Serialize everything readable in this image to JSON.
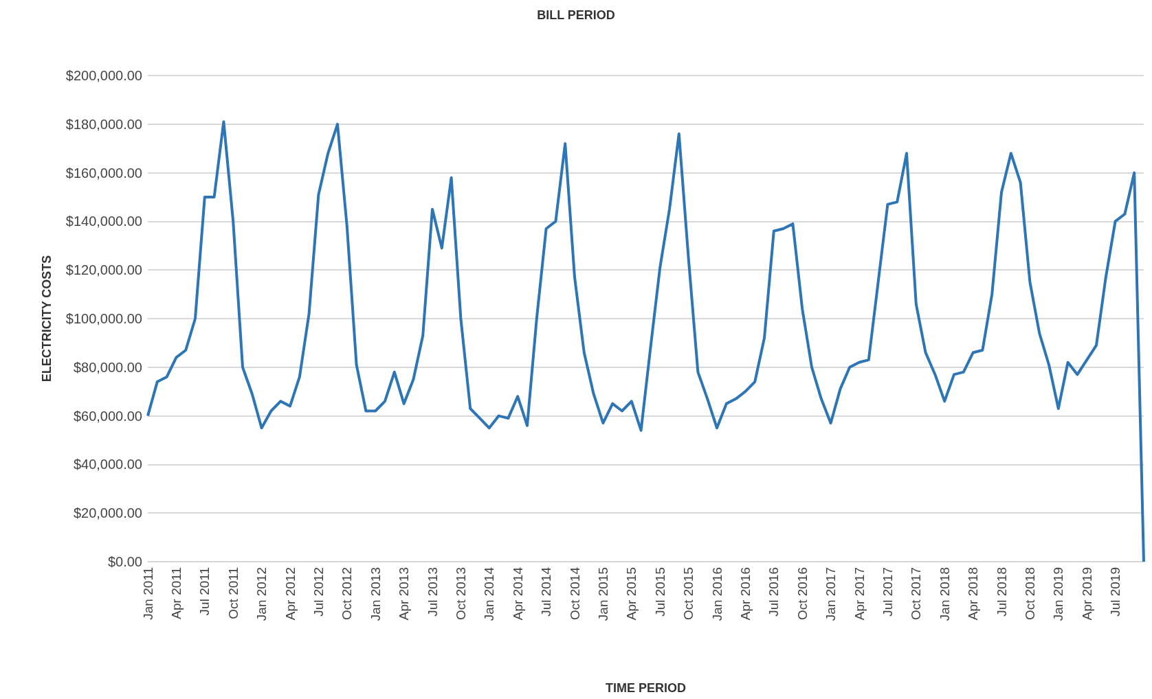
{
  "chart_data": {
    "type": "line",
    "title": "BILL PERIOD",
    "xlabel": "TIME PERIOD",
    "ylabel": "ELECTRICITY COSTS",
    "categories": [
      "Jan 2011",
      null,
      null,
      "Apr 2011",
      null,
      null,
      "Jul 2011",
      null,
      null,
      "Oct 2011",
      null,
      null,
      "Jan 2012",
      null,
      null,
      "Apr 2012",
      null,
      null,
      "Jul 2012",
      null,
      null,
      "Oct 2012",
      null,
      null,
      "Jan 2013",
      null,
      null,
      "Apr 2013",
      null,
      null,
      "Jul 2013",
      null,
      null,
      "Oct 2013",
      null,
      null,
      "Jan 2014",
      null,
      null,
      "Apr 2014",
      null,
      null,
      "Jul 2014",
      null,
      null,
      "Oct 2014",
      null,
      null,
      "Jan 2015",
      null,
      null,
      "Apr 2015",
      null,
      null,
      "Jul 2015",
      null,
      null,
      "Oct 2015",
      null,
      null,
      "Jan 2016",
      null,
      null,
      "Apr 2016",
      null,
      null,
      "Jul 2016",
      null,
      null,
      "Oct 2016",
      null,
      null,
      "Jan 2017",
      null,
      null,
      "Apr 2017",
      null,
      null,
      "Jul 2017",
      null,
      null,
      "Oct 2017",
      null,
      null,
      "Jan 2018",
      null,
      null,
      "Apr 2018",
      null,
      null,
      "Jul 2018",
      null,
      null,
      "Oct 2018",
      null,
      null,
      "Jan 2019",
      null,
      null,
      "Apr 2019",
      null,
      null,
      "Jul 2019",
      null,
      null,
      null
    ],
    "series": [
      {
        "color": "#2e75b6",
        "values": [
          60000,
          74000,
          76000,
          84000,
          87000,
          100000,
          150000,
          150000,
          181000,
          140000,
          80000,
          69000,
          55000,
          62000,
          66000,
          64000,
          76000,
          102000,
          151000,
          168000,
          180000,
          138000,
          81000,
          62000,
          62000,
          66000,
          78000,
          65000,
          75000,
          93000,
          145000,
          129000,
          158000,
          100000,
          63000,
          59000,
          55000,
          60000,
          59000,
          68000,
          56000,
          100000,
          137000,
          140000,
          172000,
          117000,
          86000,
          69000,
          57000,
          65000,
          62000,
          66000,
          54000,
          88000,
          121000,
          145000,
          176000,
          125000,
          78000,
          67000,
          55000,
          65000,
          67000,
          70000,
          74000,
          92000,
          136000,
          137000,
          139000,
          104000,
          80000,
          67000,
          57000,
          71000,
          80000,
          82000,
          83000,
          115000,
          147000,
          148000,
          168000,
          106000,
          86000,
          77000,
          66000,
          77000,
          78000,
          86000,
          87000,
          110000,
          152000,
          168000,
          156000,
          115000,
          94000,
          81000,
          63000,
          82000,
          77000,
          83000,
          89000,
          117000,
          140000,
          143000,
          160000,
          0
        ]
      }
    ],
    "ylim": [
      0,
      200000
    ],
    "yticks": [
      {
        "value": 0,
        "label": "$0.00"
      },
      {
        "value": 20000,
        "label": "$20,000.00"
      },
      {
        "value": 40000,
        "label": "$40,000.00"
      },
      {
        "value": 60000,
        "label": "$60,000.00"
      },
      {
        "value": 80000,
        "label": "$80,000.00"
      },
      {
        "value": 100000,
        "label": "$100,000.00"
      },
      {
        "value": 120000,
        "label": "$120,000.00"
      },
      {
        "value": 140000,
        "label": "$140,000.00"
      },
      {
        "value": 160000,
        "label": "$160,000.00"
      },
      {
        "value": 180000,
        "label": "$180,000.00"
      },
      {
        "value": 200000,
        "label": "$200,000.00"
      }
    ],
    "grid": "y",
    "marker": "none",
    "line_style": "solid"
  }
}
